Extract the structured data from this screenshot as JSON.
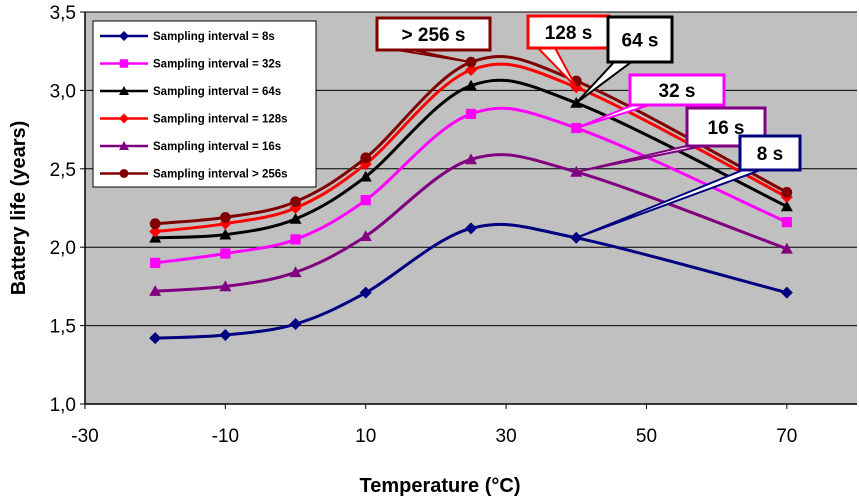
{
  "chart_data": {
    "type": "line",
    "xlabel": "Temperature (°C)",
    "ylabel": "Battery life (years)",
    "xlim": [
      -30,
      80
    ],
    "ylim": [
      1.0,
      3.5
    ],
    "xticks": [
      -30,
      -10,
      10,
      30,
      50,
      70
    ],
    "yticks": [
      1.0,
      1.5,
      2.0,
      2.5,
      3.0,
      3.5
    ],
    "ytick_labels": [
      "1,0",
      "1,5",
      "2,0",
      "2,5",
      "3,0",
      "3,5"
    ],
    "grid": "horizontal",
    "plot_background": "#c0c0c0",
    "legend_position": "top-left",
    "x": [
      -20,
      -10,
      0,
      10,
      25,
      40,
      70
    ],
    "series": [
      {
        "name": "Sampling interval = 8s",
        "color": "#000080",
        "marker": "diamond",
        "values": [
          1.42,
          1.44,
          1.51,
          1.71,
          2.12,
          2.06,
          1.71
        ]
      },
      {
        "name": "Sampling interval = 32s",
        "color": "#ff00ff",
        "marker": "square",
        "values": [
          1.9,
          1.96,
          2.05,
          2.3,
          2.85,
          2.76,
          2.16
        ]
      },
      {
        "name": "Sampling interval = 64s",
        "color": "#000000",
        "marker": "triangle",
        "values": [
          2.06,
          2.08,
          2.18,
          2.45,
          3.03,
          2.92,
          2.26
        ]
      },
      {
        "name": "Sampling interval = 128s",
        "color": "#ff0000",
        "marker": "diamond",
        "values": [
          2.1,
          2.15,
          2.25,
          2.53,
          3.13,
          3.02,
          2.32
        ]
      },
      {
        "name": "Sampling interval = 16s",
        "color": "#800080",
        "marker": "triangle",
        "values": [
          1.72,
          1.75,
          1.84,
          2.07,
          2.56,
          2.48,
          1.99
        ]
      },
      {
        "name": "Sampling interval > 256s",
        "color": "#800000",
        "marker": "circle",
        "values": [
          2.15,
          2.19,
          2.29,
          2.57,
          3.18,
          3.06,
          2.35
        ]
      }
    ],
    "annotations": [
      {
        "text": "> 256 s",
        "border_color": "#800000",
        "target": [
          25,
          3.18
        ]
      },
      {
        "text": "128 s",
        "border_color": "#ff0000",
        "target": [
          40,
          3.02
        ]
      },
      {
        "text": "64 s",
        "border_color": "#000000",
        "target": [
          40,
          2.92
        ]
      },
      {
        "text": "32 s",
        "border_color": "#ff00ff",
        "target": [
          40,
          2.76
        ]
      },
      {
        "text": "16 s",
        "border_color": "#800080",
        "target": [
          40,
          2.48
        ]
      },
      {
        "text": "8 s",
        "border_color": "#000080",
        "target": [
          40,
          2.06
        ]
      }
    ]
  }
}
